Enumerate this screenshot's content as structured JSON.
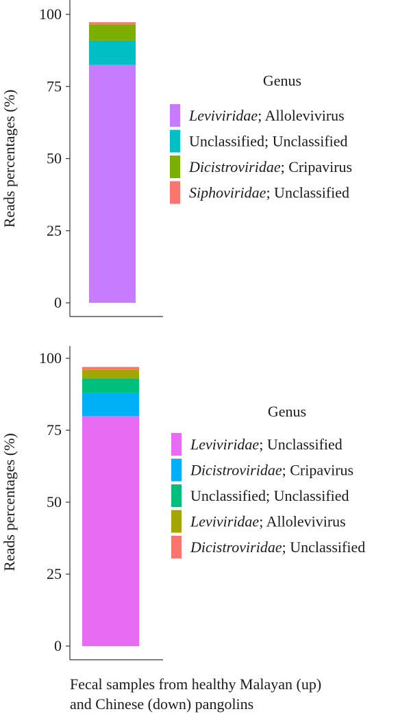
{
  "caption": {
    "line1": "Fecal samples from healthy Malayan (up)",
    "line2": "and Chinese (down) pangolins"
  },
  "chart_data": [
    {
      "type": "bar",
      "stacked": true,
      "ylabel": "Reads percentages (%)",
      "ylim": [
        0,
        100
      ],
      "yticks": [
        0,
        25,
        50,
        75,
        100
      ],
      "legend_title": "Genus",
      "legend_position": "right",
      "series": [
        {
          "family": "Leviviridae",
          "genus": "Allolevivirus",
          "family_italic": true,
          "value": 82.5,
          "color": "#C77CFF"
        },
        {
          "family": "Unclassified",
          "genus": "Unclassified",
          "family_italic": false,
          "value": 8.5,
          "color": "#00BFC4"
        },
        {
          "family": "Dicistroviridae",
          "genus": "Cripavirus",
          "family_italic": true,
          "value": 5.5,
          "color": "#7CAE00"
        },
        {
          "family": "Siphoviridae",
          "genus": "Unclassified",
          "family_italic": true,
          "value": 0.8,
          "color": "#F8766D"
        }
      ]
    },
    {
      "type": "bar",
      "stacked": true,
      "ylabel": "Reads percentages (%)",
      "ylim": [
        0,
        100
      ],
      "yticks": [
        0,
        25,
        50,
        75,
        100
      ],
      "legend_title": "Genus",
      "legend_position": "right",
      "series": [
        {
          "family": "Leviviridae",
          "genus": "Unclassified",
          "family_italic": true,
          "value": 80.0,
          "color": "#E76BF3"
        },
        {
          "family": "Dicistroviridae",
          "genus": "Cripavirus",
          "family_italic": true,
          "value": 8.0,
          "color": "#00B0F6"
        },
        {
          "family": "Unclassified",
          "genus": "Unclassified",
          "family_italic": false,
          "value": 5.0,
          "color": "#00BF7D"
        },
        {
          "family": "Leviviridae",
          "genus": "Allolevivirus",
          "family_italic": true,
          "value": 3.0,
          "color": "#A3A500"
        },
        {
          "family": "Dicistroviridae",
          "genus": "Unclassified",
          "family_italic": true,
          "value": 1.0,
          "color": "#F8766D"
        }
      ]
    }
  ]
}
